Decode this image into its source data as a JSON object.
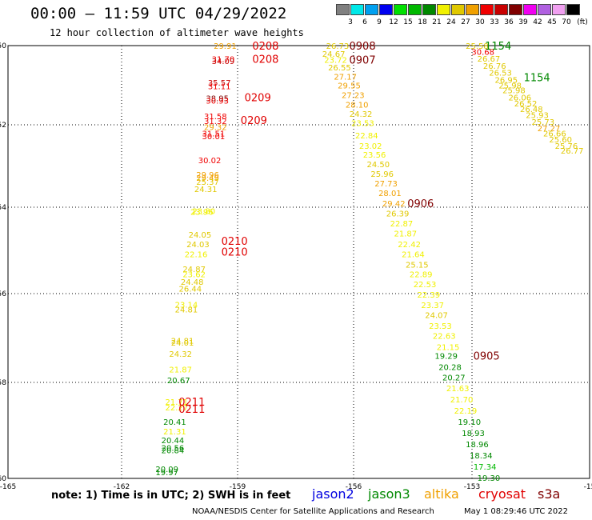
{
  "header": {
    "title": "00:00 – 11:59 UTC 04/29/2022",
    "subtitle": "12 hour collection of altimeter wave heights"
  },
  "color_scale": {
    "unit": "(ft)",
    "bins": [
      {
        "label": "3",
        "color": "#808080"
      },
      {
        "label": "6",
        "color": "#00e8e8"
      },
      {
        "label": "9",
        "color": "#00a0f0"
      },
      {
        "label": "12",
        "color": "#0000f0"
      },
      {
        "label": "15",
        "color": "#00e000"
      },
      {
        "label": "18",
        "color": "#00b800"
      },
      {
        "label": "21",
        "color": "#008800"
      },
      {
        "label": "24",
        "color": "#f0f000"
      },
      {
        "label": "27",
        "color": "#e0c800"
      },
      {
        "label": "30",
        "color": "#f0a000"
      },
      {
        "label": "33",
        "color": "#f00000"
      },
      {
        "label": "36",
        "color": "#c80000"
      },
      {
        "label": "39",
        "color": "#800000"
      },
      {
        "label": "42",
        "color": "#f000f0"
      },
      {
        "label": "45",
        "color": "#b060e0"
      },
      {
        "label": "70",
        "color": "#f0a0f0"
      },
      {
        "label": "",
        "color": "#000000"
      }
    ]
  },
  "axes": {
    "lat_ticks": [
      "-50",
      "-52",
      "-54",
      "-56",
      "-58",
      "-60"
    ],
    "lon_ticks": [
      "-165",
      "-162",
      "-159",
      "-156",
      "-153",
      "-15"
    ]
  },
  "footer": {
    "note": "note: 1) Time is in UTC; 2) SWH is in feet",
    "satellites": [
      {
        "name": "jason2",
        "color": "#0000e0"
      },
      {
        "name": "jason3",
        "color": "#008800"
      },
      {
        "name": "altika",
        "color": "#f0a000"
      },
      {
        "name": "cryosat",
        "color": "#e00000"
      },
      {
        "name": "s3a",
        "color": "#800000"
      }
    ],
    "credit": "NOAA/NESDIS Center for Satellite Applications and Research",
    "generated": "May  1 08:29:46 UTC 2022"
  },
  "chart_data": {
    "type": "scatter",
    "title": "00:00 – 11:59 UTC 04/29/2022",
    "xlim": [
      -165,
      -150
    ],
    "ylim": [
      -60,
      -50
    ],
    "time_labels": [
      {
        "text": "0208",
        "lon": -158.7,
        "lat": -50.0,
        "color": "#e00000"
      },
      {
        "text": "0208",
        "lon": -158.7,
        "lat": -50.33,
        "color": "#e00000"
      },
      {
        "text": "0209",
        "lon": -158.9,
        "lat": -51.3,
        "color": "#e00000"
      },
      {
        "text": "0209",
        "lon": -159.0,
        "lat": -51.88,
        "color": "#e00000"
      },
      {
        "text": "0210",
        "lon": -159.5,
        "lat": -54.78,
        "color": "#e00000"
      },
      {
        "text": "0210",
        "lon": -159.5,
        "lat": -55.03,
        "color": "#e00000"
      },
      {
        "text": "0211",
        "lon": -160.6,
        "lat": -58.4,
        "color": "#e00000"
      },
      {
        "text": "0211",
        "lon": -160.6,
        "lat": -58.55,
        "color": "#e00000"
      },
      {
        "text": "0908",
        "lon": -156.2,
        "lat": -50.0,
        "color": "#800000"
      },
      {
        "text": "0907",
        "lon": -156.2,
        "lat": -50.35,
        "color": "#800000"
      },
      {
        "text": "0906",
        "lon": -154.7,
        "lat": -53.9,
        "color": "#800000"
      },
      {
        "text": "0905",
        "lon": -153.0,
        "lat": -57.4,
        "color": "#800000"
      },
      {
        "text": "1154",
        "lon": -152.7,
        "lat": -49.95,
        "color": "#008800"
      },
      {
        "text": "1154",
        "lon": -151.7,
        "lat": -50.8,
        "color": "#008800"
      }
    ],
    "series": [
      {
        "name": "cryosat",
        "points": [
          {
            "lon": -159.4,
            "lat": -50.0,
            "v": 29.91
          },
          {
            "lon": -159.45,
            "lat": -50.33,
            "v": 31.7
          },
          {
            "lon": -159.45,
            "lat": -50.38,
            "v": 34.09
          },
          {
            "lon": -159.55,
            "lat": -50.93,
            "v": 35.57
          },
          {
            "lon": -159.55,
            "lat": -51.02,
            "v": 31.11
          },
          {
            "lon": -159.6,
            "lat": -51.32,
            "v": 38.95
          },
          {
            "lon": -159.6,
            "lat": -51.38,
            "v": 30.93
          },
          {
            "lon": -159.65,
            "lat": -51.78,
            "v": 31.58
          },
          {
            "lon": -159.65,
            "lat": -51.9,
            "v": 31.32
          },
          {
            "lon": -159.65,
            "lat": -52.05,
            "v": 29.32
          },
          {
            "lon": -159.7,
            "lat": -52.2,
            "v": 31.51
          },
          {
            "lon": -159.7,
            "lat": -52.27,
            "v": 30.01
          },
          {
            "lon": -159.8,
            "lat": -52.85,
            "v": 30.02
          },
          {
            "lon": -159.85,
            "lat": -53.2,
            "v": 29.96
          },
          {
            "lon": -159.85,
            "lat": -53.28,
            "v": 29.49
          },
          {
            "lon": -159.85,
            "lat": -53.38,
            "v": 25.37
          },
          {
            "lon": -159.9,
            "lat": -53.55,
            "v": 24.31
          },
          {
            "lon": -159.95,
            "lat": -54.08,
            "v": 23.8
          },
          {
            "lon": -160.0,
            "lat": -54.1,
            "v": 23.96
          },
          {
            "lon": -160.05,
            "lat": -54.63,
            "v": 24.05
          },
          {
            "lon": -160.1,
            "lat": -54.85,
            "v": 24.03
          },
          {
            "lon": -160.15,
            "lat": -55.08,
            "v": 22.16
          },
          {
            "lon": -160.2,
            "lat": -55.43,
            "v": 24.87
          },
          {
            "lon": -160.2,
            "lat": -55.55,
            "v": 23.62
          },
          {
            "lon": -160.25,
            "lat": -55.72,
            "v": 24.48
          },
          {
            "lon": -160.3,
            "lat": -55.88,
            "v": 26.44
          },
          {
            "lon": -160.4,
            "lat": -56.24,
            "v": 23.14
          },
          {
            "lon": -160.4,
            "lat": -56.35,
            "v": 24.81
          },
          {
            "lon": -160.5,
            "lat": -57.05,
            "v": 24.81
          },
          {
            "lon": -160.5,
            "lat": -57.1,
            "v": 24.01
          },
          {
            "lon": -160.55,
            "lat": -57.35,
            "v": 24.32
          },
          {
            "lon": -160.55,
            "lat": -57.7,
            "v": 21.87
          },
          {
            "lon": -160.6,
            "lat": -57.95,
            "v": 20.67
          },
          {
            "lon": -160.65,
            "lat": -58.4,
            "v": 21.71
          },
          {
            "lon": -160.65,
            "lat": -58.52,
            "v": 22.27
          },
          {
            "lon": -160.7,
            "lat": -58.82,
            "v": 20.41
          },
          {
            "lon": -160.7,
            "lat": -59.02,
            "v": 21.31
          },
          {
            "lon": -160.75,
            "lat": -59.2,
            "v": 20.44
          },
          {
            "lon": -160.75,
            "lat": -59.36,
            "v": 20.56
          },
          {
            "lon": -160.75,
            "lat": -59.41,
            "v": 20.84
          },
          {
            "lon": -160.9,
            "lat": -59.8,
            "v": 20.09
          },
          {
            "lon": -160.9,
            "lat": -59.87,
            "v": 19.97
          }
        ]
      },
      {
        "name": "s3a",
        "points": [
          {
            "lon": -156.5,
            "lat": -50.0,
            "v": 26.73
          },
          {
            "lon": -156.6,
            "lat": -50.2,
            "v": 24.67
          },
          {
            "lon": -156.55,
            "lat": -50.35,
            "v": 23.72
          },
          {
            "lon": -156.45,
            "lat": -50.55,
            "v": 26.55
          },
          {
            "lon": -156.3,
            "lat": -50.78,
            "v": 27.17
          },
          {
            "lon": -156.2,
            "lat": -51.0,
            "v": 29.55
          },
          {
            "lon": -156.1,
            "lat": -51.24,
            "v": 27.23
          },
          {
            "lon": -156.0,
            "lat": -51.48,
            "v": 28.1
          },
          {
            "lon": -155.9,
            "lat": -51.72,
            "v": 24.32
          },
          {
            "lon": -155.85,
            "lat": -51.95,
            "v": 23.53
          },
          {
            "lon": -155.75,
            "lat": -52.25,
            "v": 22.84
          },
          {
            "lon": -155.65,
            "lat": -52.5,
            "v": 23.02
          },
          {
            "lon": -155.55,
            "lat": -52.72,
            "v": 23.56
          },
          {
            "lon": -155.45,
            "lat": -52.95,
            "v": 24.5
          },
          {
            "lon": -155.35,
            "lat": -53.18,
            "v": 25.96
          },
          {
            "lon": -155.25,
            "lat": -53.42,
            "v": 27.73
          },
          {
            "lon": -155.15,
            "lat": -53.65,
            "v": 28.01
          },
          {
            "lon": -155.05,
            "lat": -53.9,
            "v": 29.42
          },
          {
            "lon": -154.95,
            "lat": -54.14,
            "v": 26.39
          },
          {
            "lon": -154.85,
            "lat": -54.37,
            "v": 22.87
          },
          {
            "lon": -154.75,
            "lat": -54.6,
            "v": 21.87
          },
          {
            "lon": -154.65,
            "lat": -54.85,
            "v": 22.42
          },
          {
            "lon": -154.55,
            "lat": -55.08,
            "v": 21.64
          },
          {
            "lon": -154.45,
            "lat": -55.32,
            "v": 25.15
          },
          {
            "lon": -154.35,
            "lat": -55.55,
            "v": 22.89
          },
          {
            "lon": -154.25,
            "lat": -55.78,
            "v": 22.53
          },
          {
            "lon": -154.15,
            "lat": -56.02,
            "v": 22.39
          },
          {
            "lon": -154.05,
            "lat": -56.25,
            "v": 23.37
          },
          {
            "lon": -153.95,
            "lat": -56.48,
            "v": 24.07
          },
          {
            "lon": -153.85,
            "lat": -56.72,
            "v": 23.53
          },
          {
            "lon": -153.75,
            "lat": -56.95,
            "v": 22.63
          },
          {
            "lon": -153.65,
            "lat": -57.2,
            "v": 21.15
          }
        ]
      },
      {
        "name": "jason3",
        "points": [
          {
            "lon": -153.7,
            "lat": -57.4,
            "v": 19.29
          },
          {
            "lon": -153.6,
            "lat": -57.65,
            "v": 20.28
          },
          {
            "lon": -153.5,
            "lat": -57.88,
            "v": 20.27
          },
          {
            "lon": -153.4,
            "lat": -58.12,
            "v": 21.63
          },
          {
            "lon": -153.3,
            "lat": -58.35,
            "v": 21.7
          },
          {
            "lon": -153.2,
            "lat": -58.58,
            "v": 22.19
          },
          {
            "lon": -153.1,
            "lat": -58.82,
            "v": 19.1
          },
          {
            "lon": -153.0,
            "lat": -59.05,
            "v": 18.93
          },
          {
            "lon": -152.9,
            "lat": -59.28,
            "v": 18.96
          },
          {
            "lon": -152.8,
            "lat": -59.52,
            "v": 18.34
          },
          {
            "lon": -152.7,
            "lat": -59.75,
            "v": 17.34
          },
          {
            "lon": -152.6,
            "lat": -59.98,
            "v": 19.3
          }
        ]
      },
      {
        "name": "altika",
        "points": [
          {
            "lon": -152.9,
            "lat": -50.0,
            "v": 25.58
          },
          {
            "lon": -152.75,
            "lat": -50.15,
            "v": 30.68
          },
          {
            "lon": -152.6,
            "lat": -50.32,
            "v": 26.67
          },
          {
            "lon": -152.45,
            "lat": -50.5,
            "v": 26.76
          },
          {
            "lon": -152.3,
            "lat": -50.68,
            "v": 26.53
          },
          {
            "lon": -152.15,
            "lat": -50.86,
            "v": 26.95
          },
          {
            "lon": -152.05,
            "lat": -51.0,
            "v": 25.98
          },
          {
            "lon": -151.95,
            "lat": -51.12,
            "v": 25.98
          },
          {
            "lon": -151.8,
            "lat": -51.3,
            "v": 26.06
          },
          {
            "lon": -151.65,
            "lat": -51.45,
            "v": 26.52
          },
          {
            "lon": -151.5,
            "lat": -51.6,
            "v": 26.48
          },
          {
            "lon": -151.35,
            "lat": -51.75,
            "v": 25.93
          },
          {
            "lon": -151.2,
            "lat": -51.92,
            "v": 25.73
          },
          {
            "lon": -151.05,
            "lat": -52.08,
            "v": 27.27
          },
          {
            "lon": -150.9,
            "lat": -52.2,
            "v": 26.66
          },
          {
            "lon": -150.75,
            "lat": -52.35,
            "v": 25.6
          },
          {
            "lon": -150.6,
            "lat": -52.5,
            "v": 25.76
          },
          {
            "lon": -150.45,
            "lat": -52.62,
            "v": 26.77
          }
        ]
      }
    ]
  }
}
